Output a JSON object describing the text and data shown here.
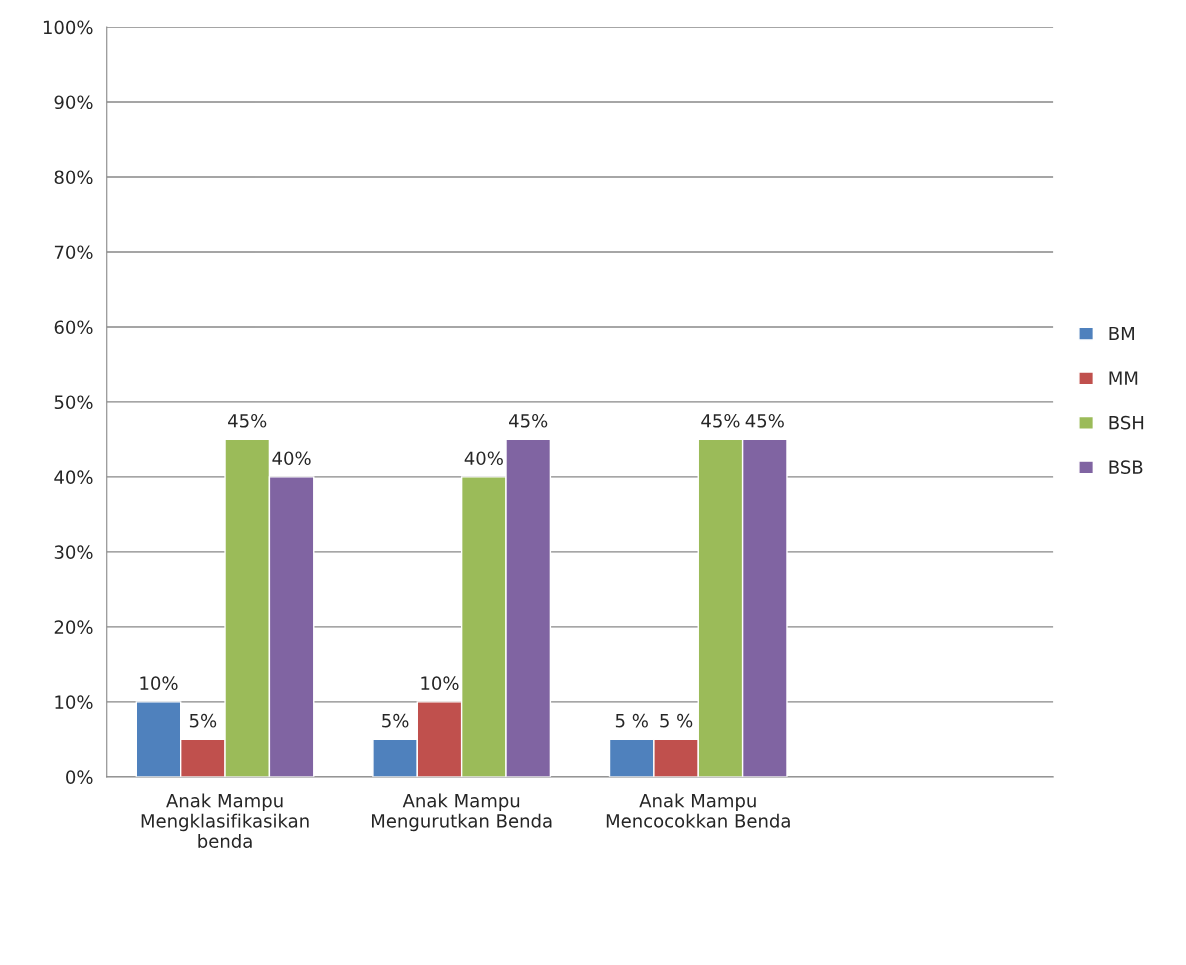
{
  "chart_data": {
    "type": "bar",
    "categories": [
      "Anak Mampu\nMengklasifikasikan\nbenda",
      "Anak Mampu\nMengurutkan Benda",
      "Anak Mampu\nMencocokkan Benda",
      null
    ],
    "series": [
      {
        "name": "BM",
        "color": "#4f81bd",
        "values": [
          10,
          5,
          5,
          null
        ],
        "value_labels": [
          "10%",
          "5%",
          "5 %",
          null
        ]
      },
      {
        "name": "MM",
        "color": "#c0504d",
        "values": [
          5,
          10,
          5,
          null
        ],
        "value_labels": [
          "5%",
          "10%",
          "5 %",
          null
        ]
      },
      {
        "name": "BSH",
        "color": "#9bbb59",
        "values": [
          45,
          40,
          45,
          null
        ],
        "value_labels": [
          "45%",
          "40%",
          "45%",
          null
        ]
      },
      {
        "name": "BSB",
        "color": "#8064a2",
        "values": [
          40,
          45,
          45,
          null
        ],
        "value_labels": [
          "40%",
          "45%",
          "45%",
          null
        ]
      }
    ],
    "ylim": [
      0,
      100
    ],
    "yticks": [
      {
        "value": 0,
        "label": "0%"
      },
      {
        "value": 10,
        "label": "10%"
      },
      {
        "value": 20,
        "label": "20%"
      },
      {
        "value": 30,
        "label": "30%"
      },
      {
        "value": 40,
        "label": "40%"
      },
      {
        "value": 50,
        "label": "50%"
      },
      {
        "value": 60,
        "label": "60%"
      },
      {
        "value": 70,
        "label": "70%"
      },
      {
        "value": 80,
        "label": "80%"
      },
      {
        "value": 90,
        "label": "90%"
      },
      {
        "value": 100,
        "label": "100%"
      }
    ],
    "grid": "y",
    "legend": "right"
  }
}
